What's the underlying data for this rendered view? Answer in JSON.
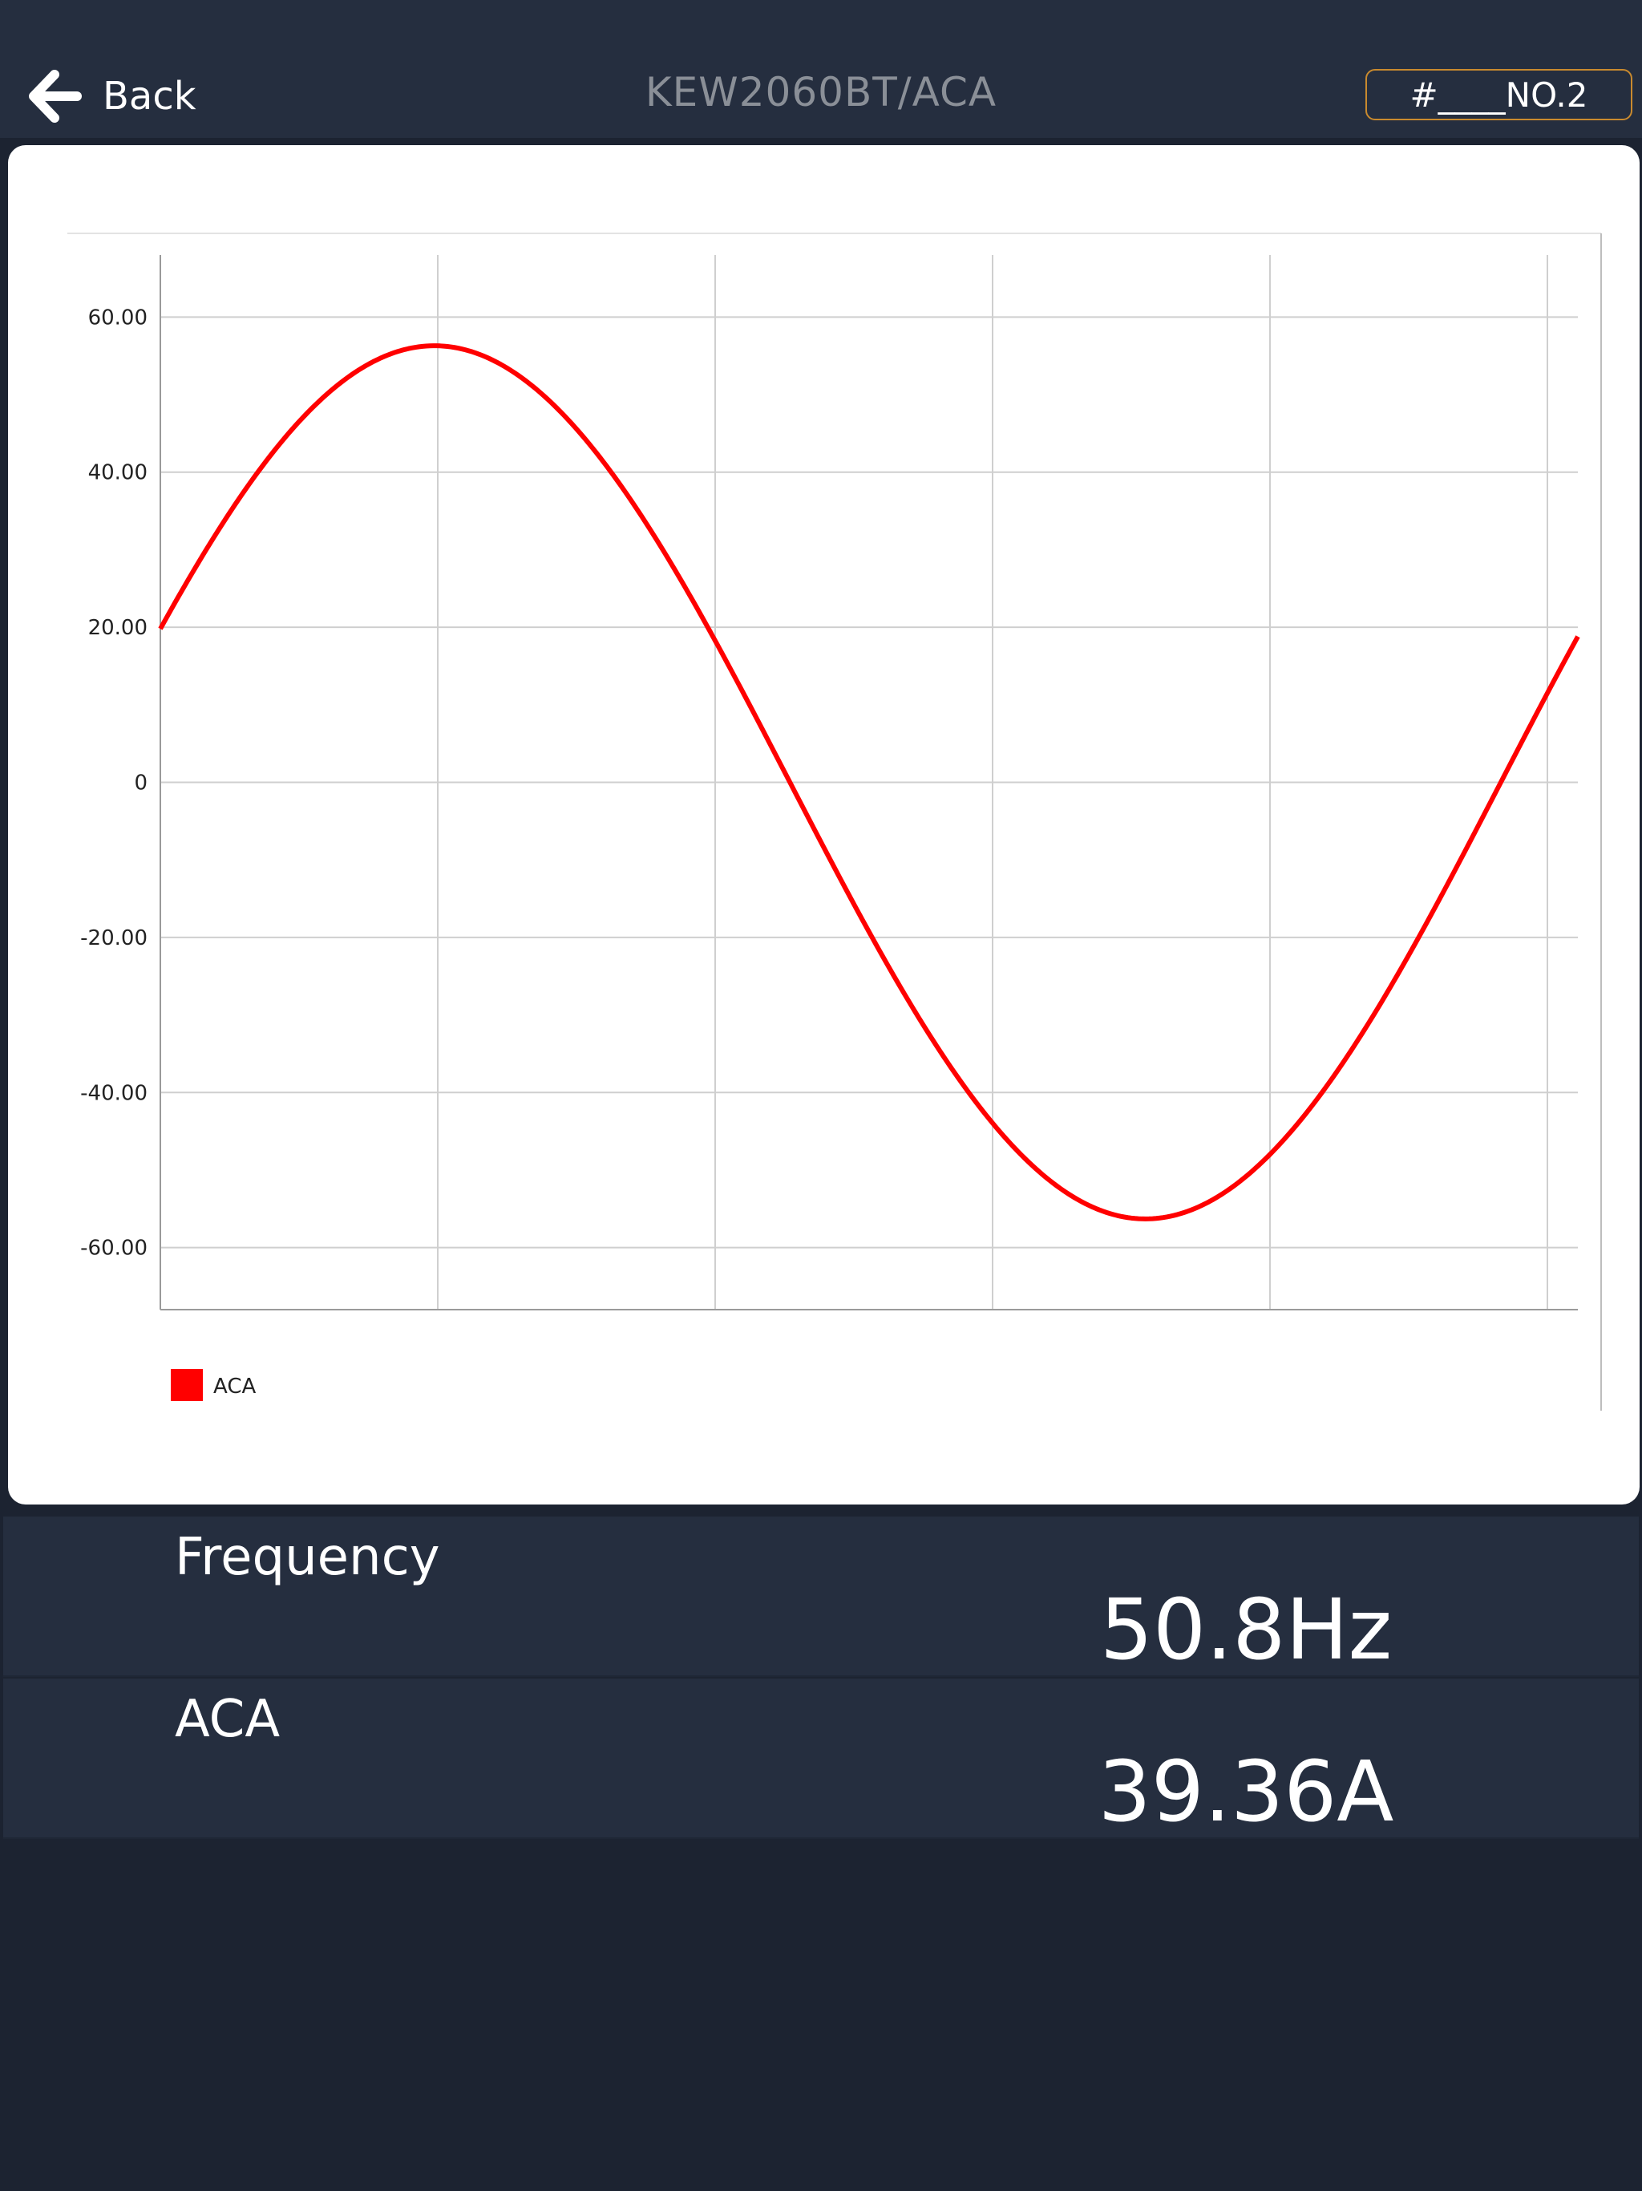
{
  "header": {
    "back_label": "Back",
    "title": "KEW2060BT/ACA",
    "tag": "#____NO.2"
  },
  "chart_data": {
    "type": "line",
    "title": "",
    "xlabel": "",
    "ylabel": "",
    "ylim": [
      -68,
      68
    ],
    "yticks": [
      60,
      40,
      20,
      0,
      -20,
      -40,
      -60
    ],
    "ytick_labels": [
      "60.00",
      "40.00",
      "20.00",
      "0",
      "-20.00",
      "-40.00",
      "-60.00"
    ],
    "x_gridlines": 5,
    "grid": true,
    "legend": "bottom-left",
    "series": [
      {
        "name": "ACA",
        "color": "#ff0000",
        "waveform": "sine",
        "amplitude": 56.3,
        "start_value": 19.8,
        "end_value": 18.8,
        "peak_value": 56.3,
        "trough_value": -56.3,
        "cycles_shown": 1.0
      }
    ]
  },
  "readings": [
    {
      "label": "Frequency",
      "value": "50.8Hz"
    },
    {
      "label": "ACA",
      "value": "39.36A"
    }
  ],
  "colors": {
    "background": "#1c2331",
    "header": "#252e3f",
    "tag_border": "#c98a2e",
    "series": "#ff0000"
  }
}
